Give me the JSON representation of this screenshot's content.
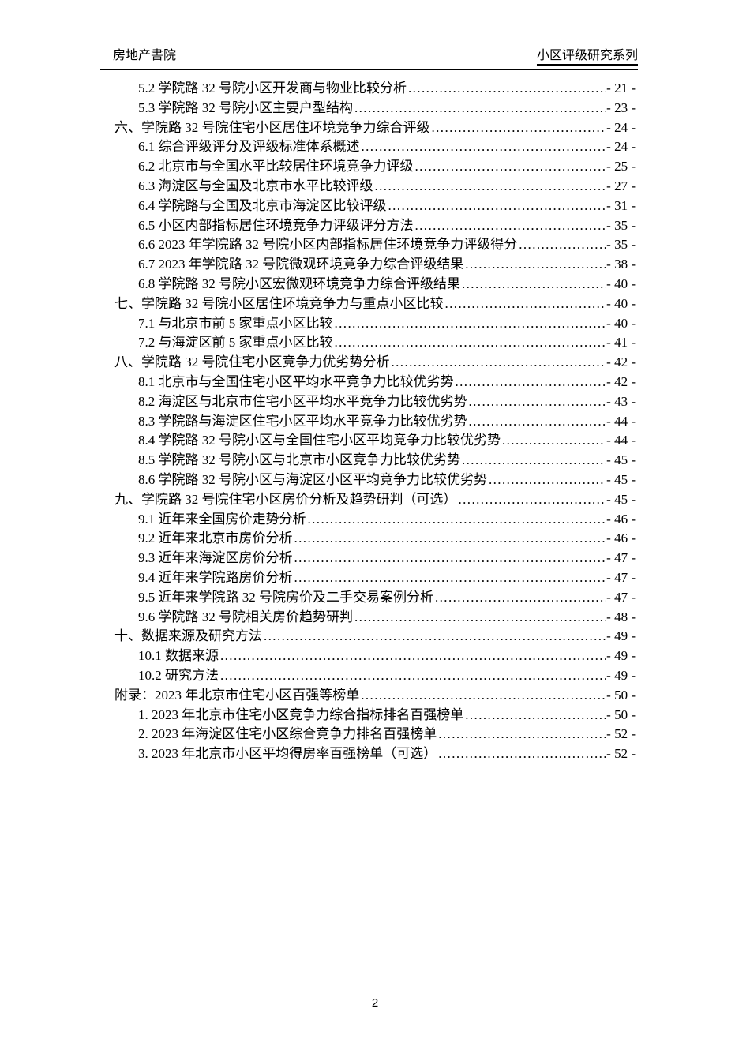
{
  "header": {
    "left": "房地产書院",
    "right": "小区评级研究系列"
  },
  "toc": {
    "entries": [
      {
        "level": 2,
        "label": "5.2 学院路 32 号院小区开发商与物业比较分析",
        "page": "- 21 -"
      },
      {
        "level": 2,
        "label": "5.3 学院路 32 号院小区主要户型结构",
        "page": "- 23 -"
      },
      {
        "level": 1,
        "label": "六、学院路 32 号院住宅小区居住环境竞争力综合评级",
        "page": "- 24 -"
      },
      {
        "level": 2,
        "label": "6.1 综合评级评分及评级标准体系概述",
        "page": "- 24 -"
      },
      {
        "level": 2,
        "label": "6.2 北京市与全国水平比较居住环境竞争力评级",
        "page": "- 25 -"
      },
      {
        "level": 2,
        "label": "6.3 海淀区与全国及北京市水平比较评级",
        "page": "- 27 -"
      },
      {
        "level": 2,
        "label": "6.4 学院路与全国及北京市海淀区比较评级",
        "page": "- 31 -"
      },
      {
        "level": 2,
        "label": "6.5 小区内部指标居住环境竞争力评级评分方法",
        "page": "- 35 -"
      },
      {
        "level": 2,
        "label": "6.6 2023 年学院路 32 号院小区内部指标居住环境竞争力评级得分",
        "page": "- 35 -"
      },
      {
        "level": 2,
        "label": "6.7 2023 年学院路 32 号院微观环境竞争力综合评级结果",
        "page": "- 38 -"
      },
      {
        "level": 2,
        "label": "6.8 学院路 32 号院小区宏微观环境竞争力综合评级结果",
        "page": "- 40 -"
      },
      {
        "level": 1,
        "label": "七、学院路 32 号院小区居住环境竞争力与重点小区比较",
        "page": "- 40 -"
      },
      {
        "level": 2,
        "label": "7.1 与北京市前 5 家重点小区比较",
        "page": "- 40 -"
      },
      {
        "level": 2,
        "label": "7.2 与海淀区前 5 家重点小区比较",
        "page": "- 41 -"
      },
      {
        "level": 1,
        "label": "八、学院路 32 号院住宅小区竞争力优劣势分析",
        "page": "- 42 -"
      },
      {
        "level": 2,
        "label": "8.1 北京市与全国住宅小区平均水平竞争力比较优劣势",
        "page": "- 42 -"
      },
      {
        "level": 2,
        "label": "8.2 海淀区与北京市住宅小区平均水平竞争力比较优劣势",
        "page": "- 43 -"
      },
      {
        "level": 2,
        "label": "8.3 学院路与海淀区住宅小区平均水平竞争力比较优劣势",
        "page": "- 44 -"
      },
      {
        "level": 2,
        "label": "8.4 学院路 32 号院小区与全国住宅小区平均竞争力比较优劣势",
        "page": "- 44 -"
      },
      {
        "level": 2,
        "label": "8.5 学院路 32 号院小区与北京市小区竞争力比较优劣势",
        "page": "- 45 -"
      },
      {
        "level": 2,
        "label": "8.6 学院路 32 号院小区与海淀区小区平均竞争力比较优劣势",
        "page": "- 45 -"
      },
      {
        "level": 1,
        "label": "九、学院路 32 号院住宅小区房价分析及趋势研判（可选）",
        "page": "- 45 -"
      },
      {
        "level": 2,
        "label": "9.1 近年来全国房价走势分析",
        "page": "- 46 -"
      },
      {
        "level": 2,
        "label": "9.2 近年来北京市房价分析",
        "page": "- 46 -"
      },
      {
        "level": 2,
        "label": "9.3 近年来海淀区房价分析",
        "page": "- 47 -"
      },
      {
        "level": 2,
        "label": "9.4 近年来学院路房价分析",
        "page": "- 47 -"
      },
      {
        "level": 2,
        "label": "9.5 近年来学院路 32 号院房价及二手交易案例分析",
        "page": "- 47 -"
      },
      {
        "level": 2,
        "label": "9.6 学院路 32 号院相关房价趋势研判",
        "page": "- 48 -"
      },
      {
        "level": 1,
        "label": "十、数据来源及研究方法",
        "page": "- 49 -"
      },
      {
        "level": 2,
        "label": "10.1 数据来源",
        "page": "- 49 -"
      },
      {
        "level": 2,
        "label": "10.2 研究方法",
        "page": "- 49 -"
      },
      {
        "level": 1,
        "label": "附录：2023 年北京市住宅小区百强等榜单",
        "page": "- 50 -"
      },
      {
        "level": 2,
        "label": "1. 2023 年北京市住宅小区竞争力综合指标排名百强榜单",
        "page": "- 50 -"
      },
      {
        "level": 2,
        "label": "2. 2023 年海淀区住宅小区综合竞争力排名百强榜单",
        "page": "- 52 -"
      },
      {
        "level": 2,
        "label": "3. 2023 年北京市小区平均得房率百强榜单（可选）",
        "page": "- 52 -"
      }
    ]
  },
  "footer": {
    "page_number": "2"
  }
}
